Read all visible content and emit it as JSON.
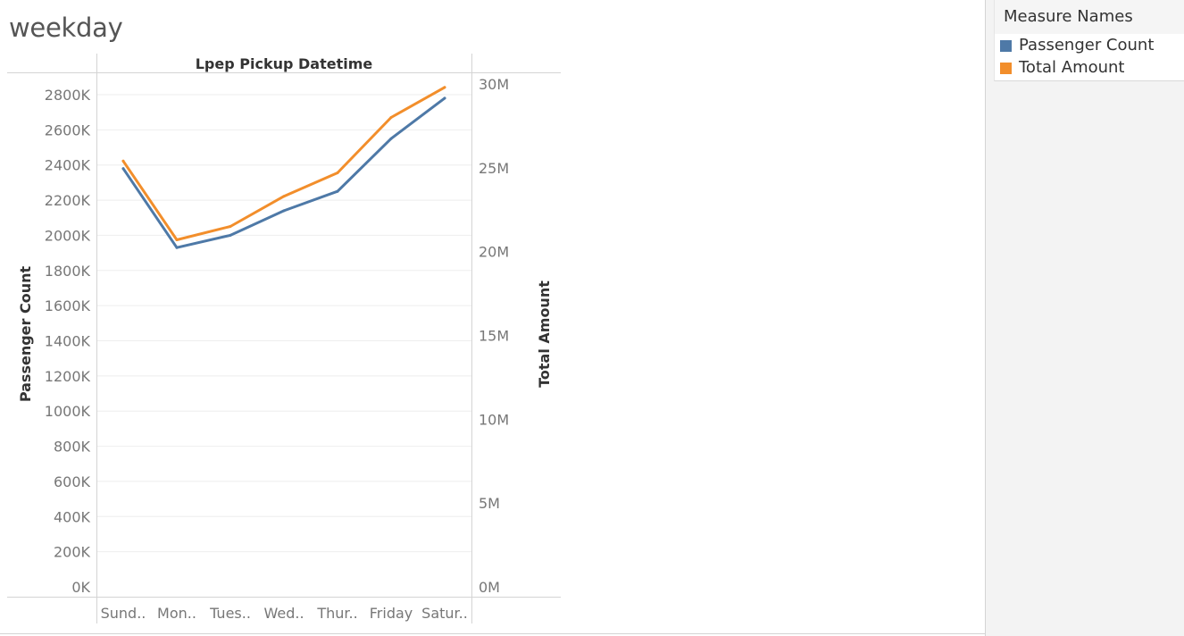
{
  "sheet": {
    "title": "weekday"
  },
  "legend": {
    "title": "Measure Names",
    "items": [
      {
        "label": "Passenger Count",
        "color": "#4e79a7"
      },
      {
        "label": "Total Amount",
        "color": "#f28e2b"
      }
    ]
  },
  "chart_data": {
    "type": "line",
    "title": "Lpep Pickup Datetime",
    "categories": [
      "Sund..",
      "Mon..",
      "Tues..",
      "Wed..",
      "Thur..",
      "Friday",
      "Satur.."
    ],
    "y_left": {
      "label": "Passenger Count",
      "ticks": [
        "0K",
        "200K",
        "400K",
        "600K",
        "800K",
        "1000K",
        "1200K",
        "1400K",
        "1600K",
        "1800K",
        "2000K",
        "2200K",
        "2400K",
        "2600K",
        "2800K"
      ],
      "ylim": [
        0,
        2800000
      ]
    },
    "y_right": {
      "label": "Total Amount",
      "ticks": [
        "0M",
        "5M",
        "10M",
        "15M",
        "20M",
        "25M",
        "30M"
      ],
      "ylim": [
        0,
        30000000
      ]
    },
    "series": [
      {
        "name": "Passenger Count",
        "axis": "left",
        "color": "#4e79a7",
        "values": [
          2380000,
          1930000,
          2000000,
          2140000,
          2250000,
          2550000,
          2780000
        ]
      },
      {
        "name": "Total Amount",
        "axis": "right",
        "color": "#f28e2b",
        "values": [
          25400000,
          20700000,
          21500000,
          23300000,
          24700000,
          28000000,
          29800000
        ]
      }
    ],
    "grid": true
  }
}
